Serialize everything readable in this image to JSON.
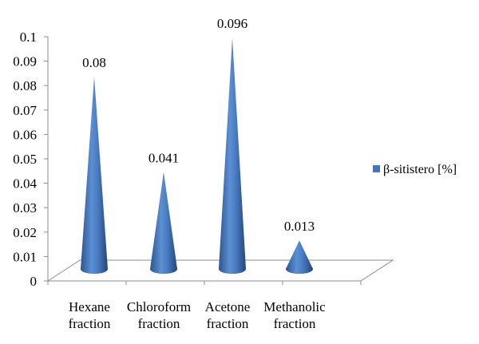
{
  "chart_data": {
    "type": "bar",
    "bar_shape": "cone",
    "view": "3d",
    "categories": [
      [
        "Hexane",
        "fraction"
      ],
      [
        "Chloroform",
        "fraction"
      ],
      [
        "Acetone",
        "fraction"
      ],
      [
        "Methanolic",
        "fraction"
      ]
    ],
    "series": [
      {
        "name": "β-sitistero [%]",
        "values": [
          0.08,
          0.041,
          0.096,
          0.013
        ],
        "labels": [
          "0.08",
          "0.041",
          "0.096",
          "0.013"
        ],
        "color": "#4472C4"
      }
    ],
    "ylim": [
      0,
      0.1
    ],
    "yticks": [
      "0",
      "0.01",
      "0.02",
      "0.03",
      "0.04",
      "0.05",
      "0.06",
      "0.07",
      "0.08",
      "0.09",
      "0.1"
    ],
    "grid": false,
    "legend_position": "right"
  }
}
